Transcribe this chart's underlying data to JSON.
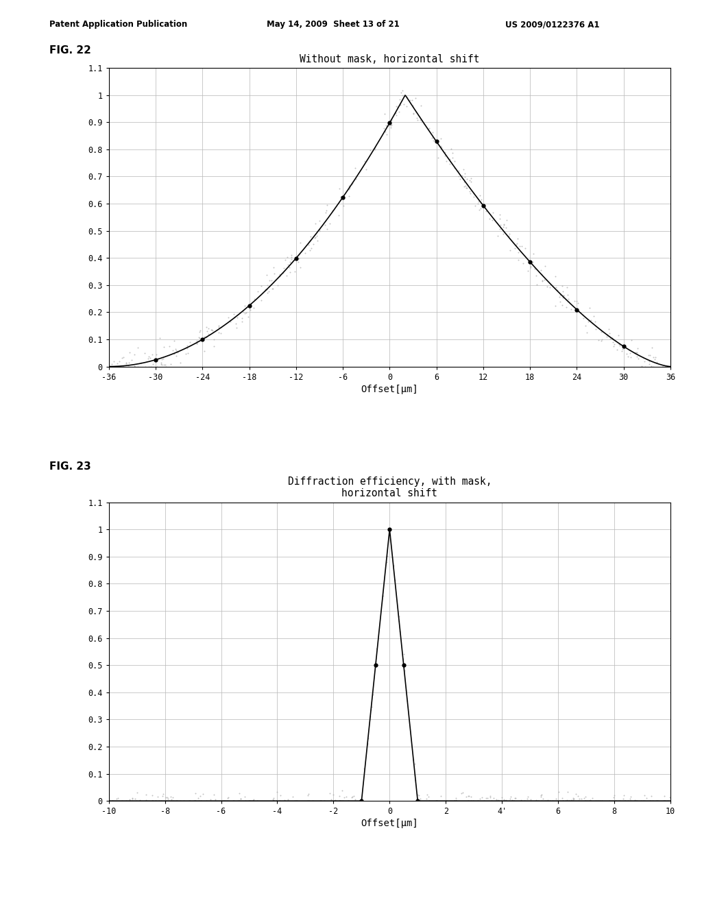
{
  "fig_title": "FIG. 22",
  "fig_title2": "FIG. 23",
  "patent_header_left": "Patent Application Publication",
  "patent_header_mid": "May 14, 2009  Sheet 13 of 21",
  "patent_header_right": "US 2009/0122376 A1",
  "plot1_title": "Without mask, horizontal shift",
  "plot1_xlabel": "Offset[μm]",
  "plot1_xlim": [
    -36,
    36
  ],
  "plot1_ylim": [
    0,
    1.1
  ],
  "plot1_xticks": [
    -36,
    -30,
    -24,
    -18,
    -12,
    -6,
    0,
    6,
    12,
    18,
    24,
    30,
    36
  ],
  "plot1_xtick_labels": [
    "-36",
    "-30",
    "-24",
    "-18",
    "-12",
    "-6",
    "0",
    "6",
    "12",
    "18",
    "24",
    "30",
    "36"
  ],
  "plot1_yticks": [
    0,
    0.1,
    0.2,
    0.3,
    0.4,
    0.5,
    0.6,
    0.7,
    0.8,
    0.9,
    1,
    1.1
  ],
  "plot1_ytick_labels": [
    "0",
    "0.1",
    "0.2",
    "0.3",
    "0.4",
    "0.5",
    "0.6",
    "0.7",
    "0.8",
    "0.9",
    "1",
    "1.1"
  ],
  "plot2_title_line1": "Diffraction efficiency, with mask,",
  "plot2_title_line2": "horizontal shift",
  "plot2_xlabel": "Offset[μm]",
  "plot2_xlim": [
    -10,
    10
  ],
  "plot2_ylim": [
    0,
    1.1
  ],
  "plot2_xticks": [
    -10,
    -8,
    -6,
    -4,
    -2,
    0,
    2,
    4,
    6,
    8,
    10
  ],
  "plot2_xtick_labels": [
    "-10",
    "-8",
    "-6",
    "-4",
    "-2",
    "0",
    "2",
    "4'",
    "6",
    "8",
    "10"
  ],
  "plot2_yticks": [
    0,
    0.1,
    0.2,
    0.3,
    0.4,
    0.5,
    0.6,
    0.7,
    0.8,
    0.9,
    1,
    1.1
  ],
  "plot2_ytick_labels": [
    "0",
    "0.1",
    "0.2",
    "0.3",
    "0.4",
    "0.5",
    "0.6",
    "0.7",
    "0.8",
    "0.9",
    "1",
    "1.1"
  ],
  "background_color": "#ffffff",
  "line_color": "#000000",
  "scatter_color": "#aaaaaa",
  "grid_color": "#bbbbbb",
  "grid_alpha": 0.9
}
